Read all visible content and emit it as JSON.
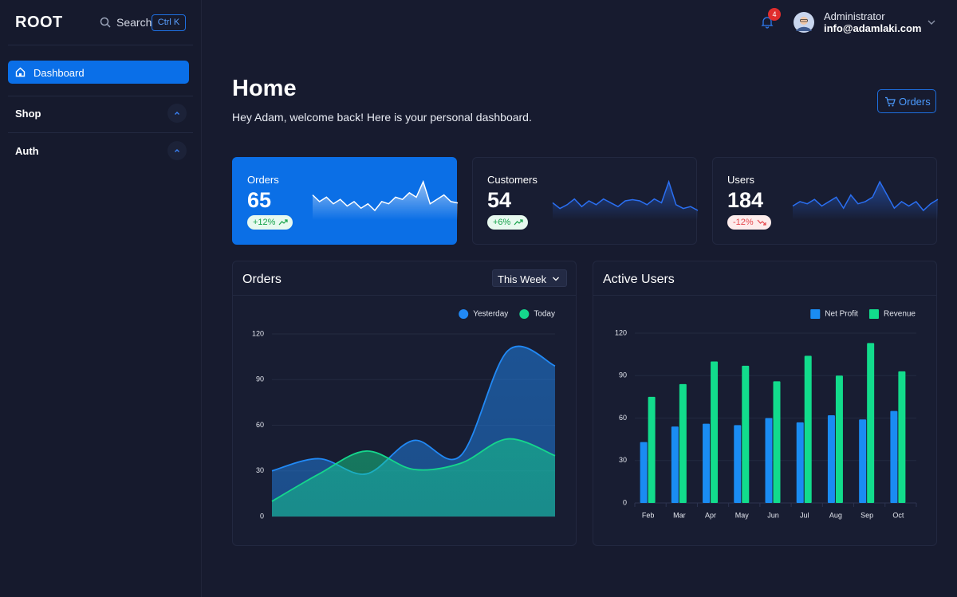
{
  "sidebar": {
    "logo": "ROOT",
    "search": "Search",
    "shortcut": "Ctrl K",
    "nav": [
      "Dashboard",
      "Shop",
      "Auth"
    ]
  },
  "header": {
    "notifications": 4,
    "role": "Administrator",
    "email": "info@adamlaki.com"
  },
  "page": {
    "title": "Home",
    "subtitle": "Hey Adam, welcome back! Here is your personal dashboard.",
    "button": "Orders"
  },
  "stats": [
    {
      "label": "Orders",
      "value": 65,
      "change": "+12%",
      "trend": [
        60,
        45,
        55,
        40,
        50,
        35,
        45,
        30,
        40,
        25,
        45,
        40,
        55,
        50,
        65,
        55,
        90,
        40,
        50,
        60,
        45,
        42
      ]
    },
    {
      "label": "Customers",
      "value": 54,
      "change": "+6%",
      "trend": [
        40,
        25,
        35,
        50,
        30,
        45,
        35,
        50,
        40,
        30,
        45,
        48,
        45,
        35,
        50,
        40,
        95,
        35,
        25,
        30,
        20
      ]
    },
    {
      "label": "Users",
      "value": 184,
      "change": "-12%",
      "trend": [
        35,
        45,
        40,
        50,
        35,
        45,
        55,
        30,
        60,
        40,
        45,
        55,
        90,
        60,
        30,
        45,
        35,
        45,
        25,
        40,
        50
      ]
    }
  ],
  "chart_data": [
    {
      "type": "line",
      "title": "Orders",
      "filter": "This Week",
      "categories": [
        null,
        null,
        null,
        null,
        null,
        null,
        null
      ],
      "series": [
        {
          "name": "Yesterday",
          "color": "#2189f5",
          "values": [
            30,
            38,
            28,
            50,
            40,
            109,
            99
          ]
        },
        {
          "name": "Today",
          "color": "#15d68c",
          "values": [
            10,
            28,
            43,
            31,
            35,
            51,
            40
          ]
        }
      ],
      "ylim": [
        0,
        120
      ],
      "yticks": [
        0,
        30,
        60,
        90,
        120
      ],
      "grid": true,
      "legend": "top-right"
    },
    {
      "type": "bar",
      "title": "Active Users",
      "categories": [
        "Feb",
        "Mar",
        "Apr",
        "May",
        "Jun",
        "Jul",
        "Aug",
        "Sep",
        "Oct"
      ],
      "series": [
        {
          "name": "Net Profit",
          "color": "#1a8cf3",
          "values": [
            43,
            54,
            56,
            55,
            60,
            57,
            62,
            59,
            65
          ]
        },
        {
          "name": "Revenue",
          "color": "#12dc8c",
          "values": [
            75,
            84,
            100,
            97,
            86,
            104,
            90,
            113,
            93
          ]
        }
      ],
      "ylim": [
        0,
        120
      ],
      "yticks": [
        0,
        30,
        60,
        90,
        120
      ],
      "grid": true,
      "legend": "top-right"
    }
  ]
}
